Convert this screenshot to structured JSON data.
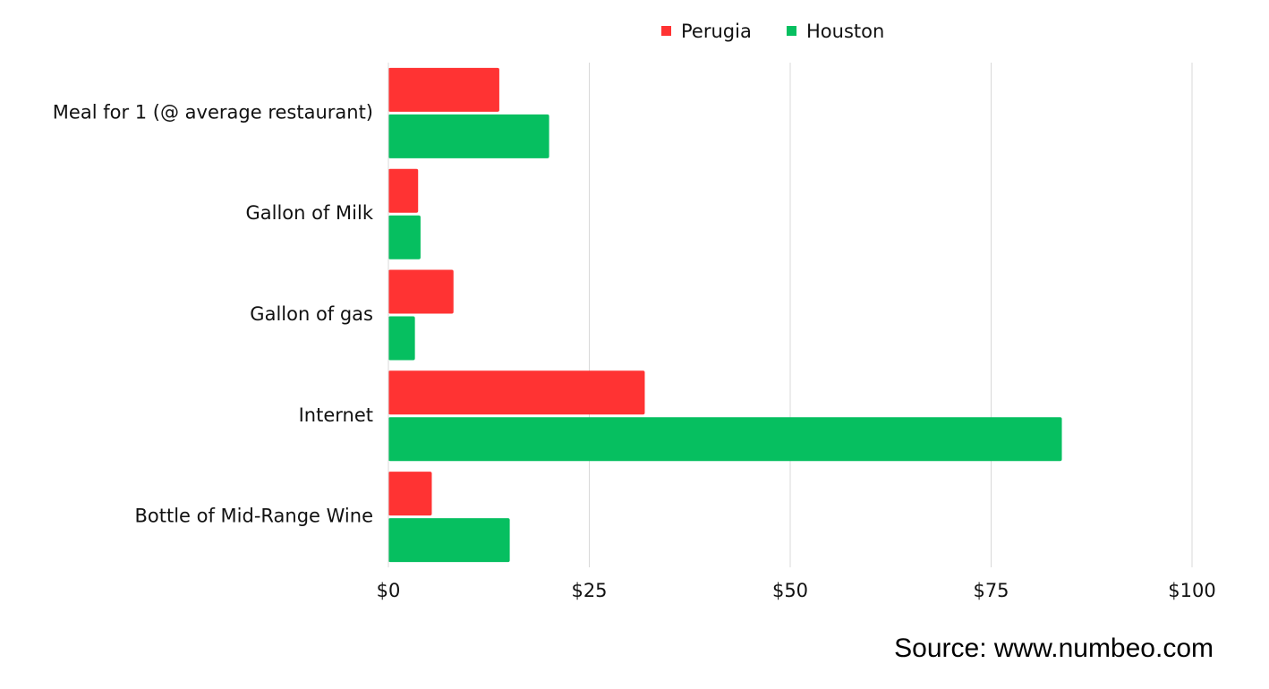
{
  "chart_data": {
    "type": "bar",
    "orientation": "horizontal",
    "categories": [
      "Meal for 1 (@ average restaurant)",
      "Gallon of Milk",
      "Gallon of gas",
      "Internet",
      "Bottle of Mid-Range Wine"
    ],
    "series": [
      {
        "name": "Perugia",
        "color": "#ff3333",
        "values": [
          13.8,
          3.7,
          8.1,
          31.9,
          5.4
        ]
      },
      {
        "name": "Houston",
        "color": "#06bf60",
        "values": [
          20.0,
          4.0,
          3.3,
          83.8,
          15.1
        ]
      }
    ],
    "x_ticks": [
      "$0",
      "$25",
      "$50",
      "$75",
      "$100"
    ],
    "x_tick_values": [
      0,
      25,
      50,
      75,
      100
    ],
    "xlim": [
      0,
      100
    ],
    "grid": "vertical",
    "legend": "top-center"
  },
  "source": "Source: www.numbeo.com"
}
